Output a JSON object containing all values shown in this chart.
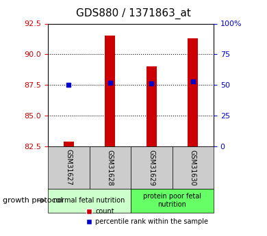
{
  "title": "GDS880 / 1371863_at",
  "samples": [
    "GSM31627",
    "GSM31628",
    "GSM31629",
    "GSM31630"
  ],
  "count_values": [
    82.9,
    91.5,
    89.0,
    91.3
  ],
  "percentile_values": [
    87.5,
    87.7,
    87.6,
    87.8
  ],
  "ylim_left": [
    82.5,
    92.5
  ],
  "ylim_right": [
    0,
    100
  ],
  "yticks_left": [
    82.5,
    85,
    87.5,
    90,
    92.5
  ],
  "yticks_right": [
    0,
    25,
    50,
    75,
    100
  ],
  "ytick_labels_right": [
    "0",
    "25",
    "50",
    "75",
    "100%"
  ],
  "bar_color": "#cc0000",
  "dot_color": "#0000cc",
  "groups": [
    {
      "label": "normal fetal nutrition",
      "samples": [
        0,
        1
      ],
      "color": "#ccffcc"
    },
    {
      "label": "protein poor fetal\nnutrition",
      "samples": [
        2,
        3
      ],
      "color": "#66ff66"
    }
  ],
  "group_protocol_label": "growth protocol",
  "legend_count_label": "count",
  "legend_percentile_label": "percentile rank within the sample",
  "grid_color": "#000000",
  "axis_left_color": "#cc0000",
  "axis_right_color": "#0000cc",
  "background_color": "#ffffff",
  "plot_bg_color": "#ffffff",
  "tick_area_color": "#cccccc"
}
